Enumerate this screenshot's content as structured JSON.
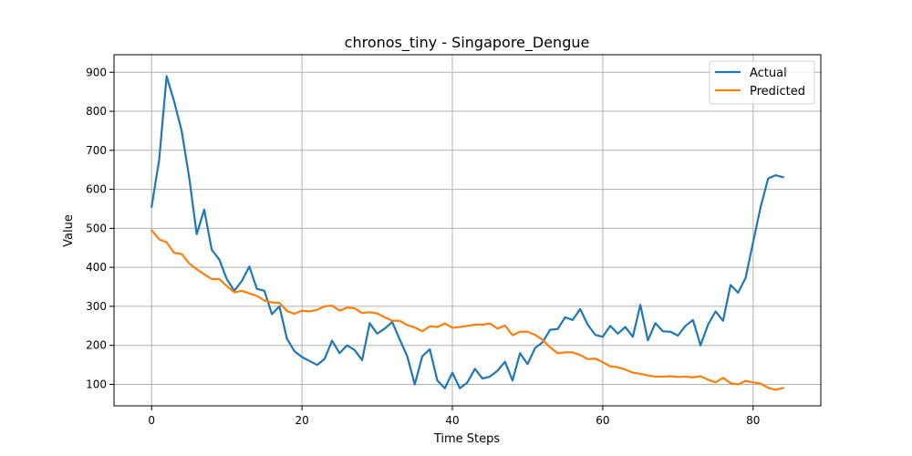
{
  "chart_data": {
    "type": "line",
    "title": "chronos_tiny - Singapore_Dengue",
    "xlabel": "Time Steps",
    "ylabel": "Value",
    "xlim": [
      -5,
      89
    ],
    "ylim": [
      45,
      945
    ],
    "xticks": [
      0,
      20,
      40,
      60,
      80
    ],
    "yticks": [
      100,
      200,
      300,
      400,
      500,
      600,
      700,
      800,
      900
    ],
    "grid": true,
    "legend_position": "top-right",
    "series": [
      {
        "name": "Actual",
        "color": "#1f77b4",
        "values": [
          555,
          675,
          890,
          825,
          750,
          630,
          485,
          548,
          445,
          420,
          370,
          340,
          365,
          402,
          345,
          340,
          280,
          300,
          217,
          185,
          170,
          160,
          150,
          165,
          212,
          180,
          200,
          188,
          162,
          257,
          230,
          243,
          260,
          215,
          172,
          100,
          172,
          190,
          110,
          90,
          130,
          90,
          105,
          140,
          115,
          120,
          135,
          158,
          110,
          180,
          152,
          193,
          208,
          240,
          242,
          272,
          265,
          293,
          253,
          227,
          222,
          250,
          230,
          247,
          222,
          304,
          213,
          257,
          236,
          235,
          225,
          250,
          265,
          200,
          253,
          287,
          263,
          355,
          335,
          373,
          465,
          555,
          628,
          636,
          631
        ]
      },
      {
        "name": "Predicted",
        "color": "#ff7f0e",
        "values": [
          495,
          472,
          464,
          437,
          434,
          410,
          395,
          382,
          370,
          370,
          352,
          336,
          340,
          333,
          327,
          315,
          310,
          309,
          288,
          281,
          289,
          287,
          291,
          300,
          302,
          289,
          297,
          295,
          283,
          285,
          282,
          272,
          263,
          263,
          252,
          246,
          236,
          249,
          247,
          256,
          245,
          247,
          250,
          253,
          253,
          256,
          243,
          251,
          226,
          235,
          235,
          227,
          214,
          195,
          180,
          182,
          182,
          175,
          165,
          166,
          157,
          146,
          144,
          138,
          130,
          127,
          123,
          120,
          120,
          121,
          119,
          120,
          118,
          121,
          112,
          105,
          117,
          103,
          100,
          109,
          105,
          102,
          91,
          86,
          91
        ]
      }
    ]
  }
}
